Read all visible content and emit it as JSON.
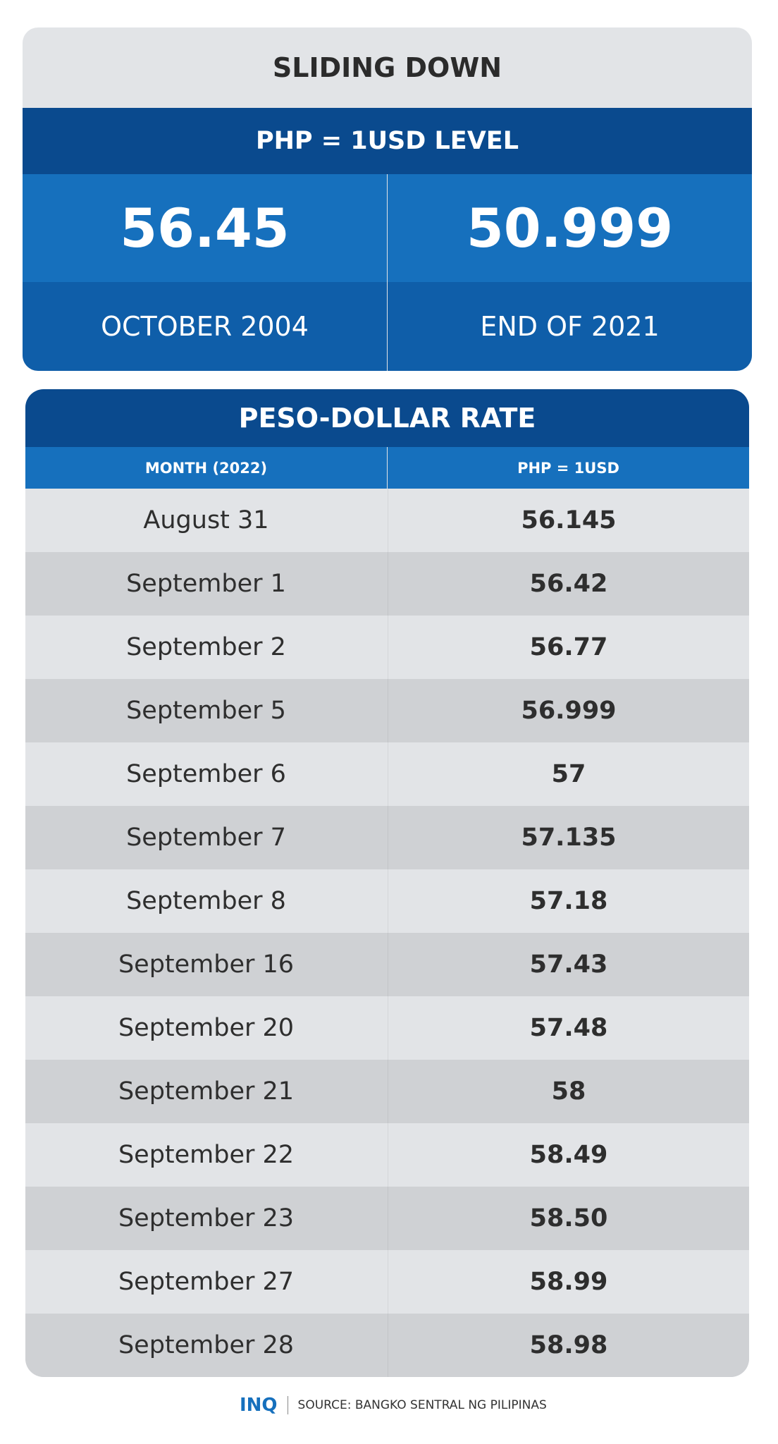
{
  "header": {
    "title": "SLIDING DOWN"
  },
  "summary": {
    "title": "PHP = 1USD LEVEL",
    "items": [
      {
        "value": "56.45",
        "label": "OCTOBER 2004"
      },
      {
        "value": "50.999",
        "label": "END OF 2021"
      }
    ]
  },
  "table": {
    "title": "PESO-DOLLAR RATE",
    "columns": [
      "MONTH (2022)",
      "PHP = 1USD"
    ],
    "rows": [
      [
        "August 31",
        "56.145"
      ],
      [
        "September 1",
        "56.42"
      ],
      [
        "September 2",
        "56.77"
      ],
      [
        "September 5",
        "56.999"
      ],
      [
        "September 6",
        "57"
      ],
      [
        "September 7",
        "57.135"
      ],
      [
        "September 8",
        "57.18"
      ],
      [
        "September 16",
        "57.43"
      ],
      [
        "September 20",
        "57.48"
      ],
      [
        "September 21",
        "58"
      ],
      [
        "September 22",
        "58.49"
      ],
      [
        "September 23",
        "58.50"
      ],
      [
        "September 27",
        "58.99"
      ],
      [
        "September 28",
        "58.98"
      ]
    ]
  },
  "footer": {
    "logo": "INQ",
    "source": "SOURCE: BANGKO SENTRAL NG PILIPINAS"
  }
}
